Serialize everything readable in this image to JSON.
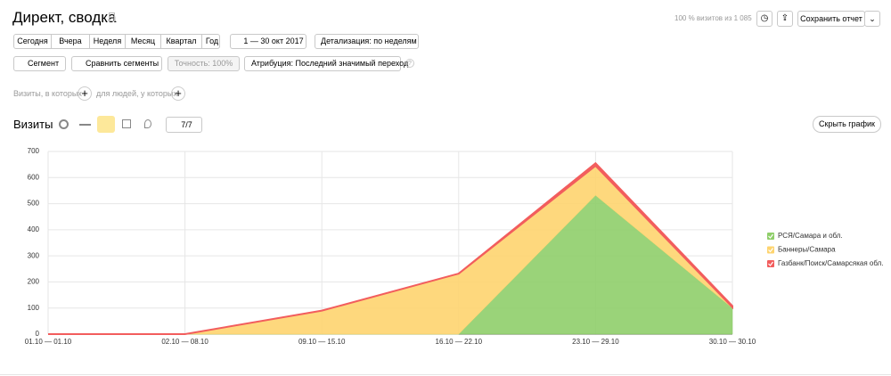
{
  "header": {
    "title": "Директ, сводка",
    "visits_note": "100 % визитов из 1 085",
    "save_button": "Сохранить отчет"
  },
  "toolbar": {
    "periods": [
      "Сегодня",
      "Вчера",
      "Неделя",
      "Месяц",
      "Квартал",
      "Год"
    ],
    "date_range": "1 — 30 окт 2017",
    "detail": "Детализация: по неделям",
    "segment": "Сегмент",
    "compare": "Сравнить сегменты",
    "accuracy": "Точность: 100%",
    "attribution": "Атрибуция: Последний значимый переход"
  },
  "filters": {
    "visits_label": "Визиты, в которых",
    "people_label": "для людей, у которых"
  },
  "chart_header": {
    "title": "Визиты",
    "series_count": "7/7",
    "hide_button": "Скрыть график"
  },
  "chart_data": {
    "type": "area",
    "stacked": true,
    "categories": [
      "01.10 — 01.10",
      "02.10 — 08.10",
      "09.10 — 15.10",
      "16.10 — 22.10",
      "23.10 — 29.10",
      "30.10 — 30.10"
    ],
    "series": [
      {
        "name": "РСЯ/Самара и обл.",
        "color": "#8fce6a",
        "values": [
          0,
          0,
          0,
          0,
          532,
          100
        ]
      },
      {
        "name": "Баннеры/Самара",
        "color": "#fed46f",
        "values": [
          0,
          0,
          90,
          232,
          113,
          3
        ]
      },
      {
        "name": "Газбанк/Поиск/Самарсякая обл.",
        "color": "#f25d5d",
        "values": [
          0,
          0,
          0,
          0,
          10,
          5
        ]
      }
    ],
    "ylim": [
      0,
      700
    ],
    "yticks": [
      0,
      100,
      200,
      300,
      400,
      500,
      600,
      700
    ],
    "grid": true,
    "legend": "right"
  }
}
